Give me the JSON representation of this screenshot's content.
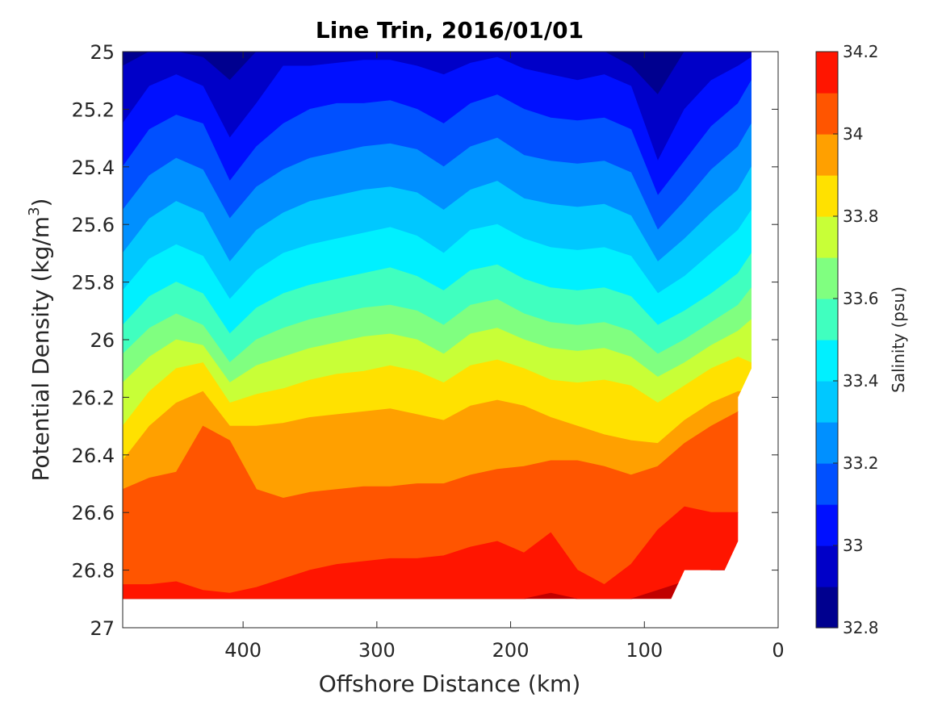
{
  "chart_data": {
    "type": "filled-contour",
    "title": "Line Trin, 2016/01/01",
    "xlabel": "Offshore Distance (km)",
    "ylabel": "Potential Density (kg/m",
    "ylabel_sup": "3",
    "ylabel_suffix": ")",
    "xlim": [
      490,
      0
    ],
    "ylim": [
      25,
      27
    ],
    "x_reversed": true,
    "y_reversed": true,
    "xticks": [
      400,
      300,
      200,
      100,
      0
    ],
    "xtick_labels": [
      "400",
      "300",
      "200",
      "100",
      "0"
    ],
    "yticks": [
      25,
      25.2,
      25.4,
      25.6,
      25.8,
      26,
      26.2,
      26.4,
      26.6,
      26.8,
      27
    ],
    "ytick_labels": [
      "25",
      "25.2",
      "25.4",
      "25.6",
      "25.8",
      "26",
      "26.2",
      "26.4",
      "26.6",
      "26.8",
      "27"
    ],
    "colorbar": {
      "label": "Salinity (psu)",
      "range": [
        32.8,
        34.2
      ],
      "ticks": [
        32.8,
        33,
        33.2,
        33.4,
        33.6,
        33.8,
        34,
        34.2
      ],
      "tick_labels": [
        "32.8",
        "33",
        "33.2",
        "33.4",
        "33.6",
        "33.8",
        "34",
        "34.2"
      ],
      "levels": [
        32.8,
        32.9,
        33.0,
        33.1,
        33.2,
        33.3,
        33.4,
        33.5,
        33.6,
        33.7,
        33.8,
        33.9,
        34.0,
        34.1,
        34.2
      ],
      "colors": [
        "#00008f",
        "#0000c8",
        "#0010ff",
        "#0050ff",
        "#0090ff",
        "#00c8ff",
        "#00f0ff",
        "#40ffbf",
        "#80ff80",
        "#c8ff37",
        "#ffe100",
        "#ffa000",
        "#ff5500",
        "#ff1500",
        "#c00000"
      ]
    },
    "x_samples": [
      490,
      470,
      450,
      430,
      410,
      390,
      370,
      350,
      330,
      310,
      290,
      270,
      250,
      230,
      210,
      190,
      170,
      150,
      130,
      110,
      90,
      70,
      50,
      30,
      20
    ],
    "isopycnal_boundaries": [
      {
        "upper_salinity": 32.9,
        "sigma": [
          25.05,
          25.0,
          25.0,
          25.02,
          25.1,
          25.0,
          25.0,
          25.0,
          25.0,
          25.0,
          25.0,
          25.0,
          25.0,
          25.0,
          25.0,
          25.0,
          25.0,
          25.0,
          25.0,
          25.05,
          25.15,
          25.0,
          25.0,
          25.0,
          25.0
        ]
      },
      {
        "upper_salinity": 33.0,
        "sigma": [
          25.25,
          25.12,
          25.08,
          25.12,
          25.3,
          25.18,
          25.05,
          25.05,
          25.04,
          25.03,
          25.03,
          25.05,
          25.08,
          25.04,
          25.02,
          25.06,
          25.08,
          25.1,
          25.08,
          25.12,
          25.38,
          25.2,
          25.1,
          25.05,
          25.02
        ]
      },
      {
        "upper_salinity": 33.1,
        "sigma": [
          25.4,
          25.27,
          25.22,
          25.25,
          25.45,
          25.33,
          25.25,
          25.2,
          25.18,
          25.18,
          25.17,
          25.2,
          25.25,
          25.18,
          25.15,
          25.2,
          25.23,
          25.24,
          25.23,
          25.27,
          25.5,
          25.38,
          25.26,
          25.18,
          25.1
        ]
      },
      {
        "upper_salinity": 33.2,
        "sigma": [
          25.55,
          25.43,
          25.37,
          25.41,
          25.58,
          25.47,
          25.41,
          25.37,
          25.35,
          25.33,
          25.32,
          25.34,
          25.4,
          25.33,
          25.3,
          25.36,
          25.38,
          25.39,
          25.38,
          25.42,
          25.62,
          25.52,
          25.41,
          25.33,
          25.25
        ]
      },
      {
        "upper_salinity": 33.3,
        "sigma": [
          25.7,
          25.58,
          25.52,
          25.56,
          25.73,
          25.62,
          25.56,
          25.52,
          25.5,
          25.48,
          25.47,
          25.49,
          25.55,
          25.48,
          25.45,
          25.51,
          25.53,
          25.54,
          25.53,
          25.57,
          25.73,
          25.65,
          25.56,
          25.48,
          25.4
        ]
      },
      {
        "upper_salinity": 33.4,
        "sigma": [
          25.83,
          25.72,
          25.67,
          25.71,
          25.86,
          25.76,
          25.7,
          25.67,
          25.65,
          25.63,
          25.61,
          25.64,
          25.7,
          25.62,
          25.6,
          25.65,
          25.68,
          25.69,
          25.68,
          25.71,
          25.84,
          25.78,
          25.7,
          25.62,
          25.55
        ]
      },
      {
        "upper_salinity": 33.5,
        "sigma": [
          25.95,
          25.85,
          25.8,
          25.84,
          25.98,
          25.89,
          25.84,
          25.81,
          25.79,
          25.77,
          25.75,
          25.78,
          25.83,
          25.76,
          25.74,
          25.79,
          25.82,
          25.83,
          25.82,
          25.85,
          25.95,
          25.9,
          25.84,
          25.77,
          25.7
        ]
      },
      {
        "upper_salinity": 33.6,
        "sigma": [
          26.05,
          25.96,
          25.91,
          25.95,
          26.08,
          26.0,
          25.96,
          25.93,
          25.91,
          25.89,
          25.88,
          25.9,
          25.95,
          25.88,
          25.86,
          25.91,
          25.94,
          25.95,
          25.94,
          25.97,
          26.05,
          26.0,
          25.94,
          25.88,
          25.82
        ]
      },
      {
        "upper_salinity": 33.7,
        "sigma": [
          26.15,
          26.06,
          26.0,
          26.02,
          26.15,
          26.09,
          26.06,
          26.03,
          26.01,
          25.99,
          25.98,
          26.0,
          26.05,
          25.98,
          25.96,
          26.0,
          26.03,
          26.04,
          26.03,
          26.06,
          26.13,
          26.08,
          26.02,
          25.97,
          25.93
        ]
      },
      {
        "upper_salinity": 33.8,
        "sigma": [
          26.3,
          26.18,
          26.1,
          26.08,
          26.22,
          26.19,
          26.17,
          26.14,
          26.12,
          26.11,
          26.09,
          26.11,
          26.15,
          26.09,
          26.07,
          26.1,
          26.14,
          26.15,
          26.14,
          26.16,
          26.22,
          26.16,
          26.1,
          26.06,
          26.08
        ]
      },
      {
        "upper_salinity": 33.9,
        "sigma": [
          26.42,
          26.3,
          26.22,
          26.18,
          26.3,
          26.3,
          26.29,
          26.27,
          26.26,
          26.25,
          26.24,
          26.26,
          26.28,
          26.23,
          26.21,
          26.23,
          26.27,
          26.3,
          26.33,
          26.35,
          26.36,
          26.28,
          26.22,
          26.18,
          26.18
        ]
      },
      {
        "upper_salinity": 34.0,
        "sigma": [
          26.52,
          26.48,
          26.46,
          26.3,
          26.35,
          26.52,
          26.55,
          26.53,
          26.52,
          26.51,
          26.51,
          26.5,
          26.5,
          26.47,
          26.45,
          26.44,
          26.42,
          26.42,
          26.44,
          26.47,
          26.44,
          26.36,
          26.3,
          26.25,
          26.2
        ]
      },
      {
        "upper_salinity": 34.1,
        "sigma": [
          26.85,
          26.85,
          26.84,
          26.87,
          26.88,
          26.86,
          26.83,
          26.8,
          26.78,
          26.77,
          26.76,
          26.76,
          26.75,
          26.72,
          26.7,
          26.74,
          26.67,
          26.8,
          26.85,
          26.78,
          26.66,
          26.58,
          26.6,
          26.6,
          26.6
        ]
      },
      {
        "upper_salinity": 34.2,
        "sigma": [
          26.9,
          26.9,
          26.9,
          26.9,
          26.9,
          26.9,
          26.9,
          26.9,
          26.9,
          26.9,
          26.9,
          26.9,
          26.9,
          26.9,
          26.9,
          26.9,
          26.88,
          26.9,
          26.9,
          26.9,
          26.87,
          26.84,
          26.8,
          26.8,
          26.8
        ]
      }
    ],
    "data_boundary": [
      {
        "x": 490,
        "sigma": 25
      },
      {
        "x": 20,
        "sigma": 25
      },
      {
        "x": 20,
        "sigma": 26.1
      },
      {
        "x": 30,
        "sigma": 26.2
      },
      {
        "x": 30,
        "sigma": 26.7
      },
      {
        "x": 40,
        "sigma": 26.8
      },
      {
        "x": 70,
        "sigma": 26.8
      },
      {
        "x": 80,
        "sigma": 26.9
      },
      {
        "x": 490,
        "sigma": 26.9
      }
    ]
  }
}
